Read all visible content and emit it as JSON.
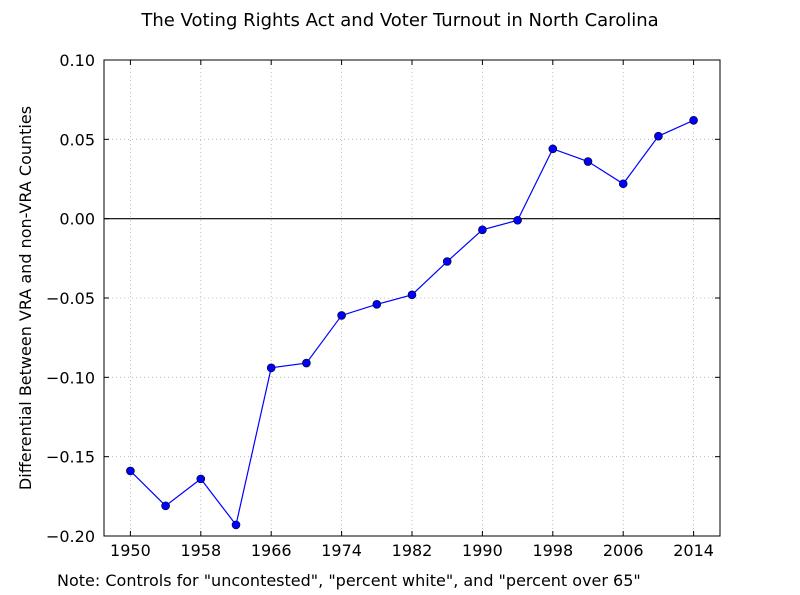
{
  "chart_data": {
    "type": "line",
    "title": "The Voting Rights Act and Voter Turnout in North Carolina",
    "xlabel": "",
    "ylabel": "Differential Between VRA and non-VRA Counties",
    "note": "Note: Controls for \"uncontested\", \"percent white\", and \"percent over 65\"",
    "xlim": [
      1947,
      2017
    ],
    "ylim": [
      -0.2,
      0.1
    ],
    "xticks": [
      1950,
      1958,
      1966,
      1974,
      1982,
      1990,
      1998,
      2006,
      2014
    ],
    "xtick_labels": [
      "1950",
      "1958",
      "1966",
      "1974",
      "1982",
      "1990",
      "1998",
      "2006",
      "2014"
    ],
    "yticks": [
      -0.2,
      -0.15,
      -0.1,
      -0.05,
      0.0,
      0.05,
      0.1
    ],
    "ytick_labels": [
      "−0.20",
      "−0.15",
      "−0.10",
      "−0.05",
      "0.00",
      "0.05",
      "0.10"
    ],
    "grid": true,
    "reference_line_y": 0.0,
    "series": [
      {
        "color": "#0000ff",
        "x": [
          1950,
          1954,
          1958,
          1962,
          1966,
          1970,
          1974,
          1978,
          1982,
          1986,
          1990,
          1994,
          1998,
          2002,
          2006,
          2010,
          2014
        ],
        "y": [
          -0.159,
          -0.181,
          -0.164,
          -0.193,
          -0.094,
          -0.091,
          -0.061,
          -0.054,
          -0.048,
          -0.027,
          -0.007,
          -0.001,
          0.044,
          0.036,
          0.022,
          0.052,
          0.062
        ]
      }
    ]
  }
}
